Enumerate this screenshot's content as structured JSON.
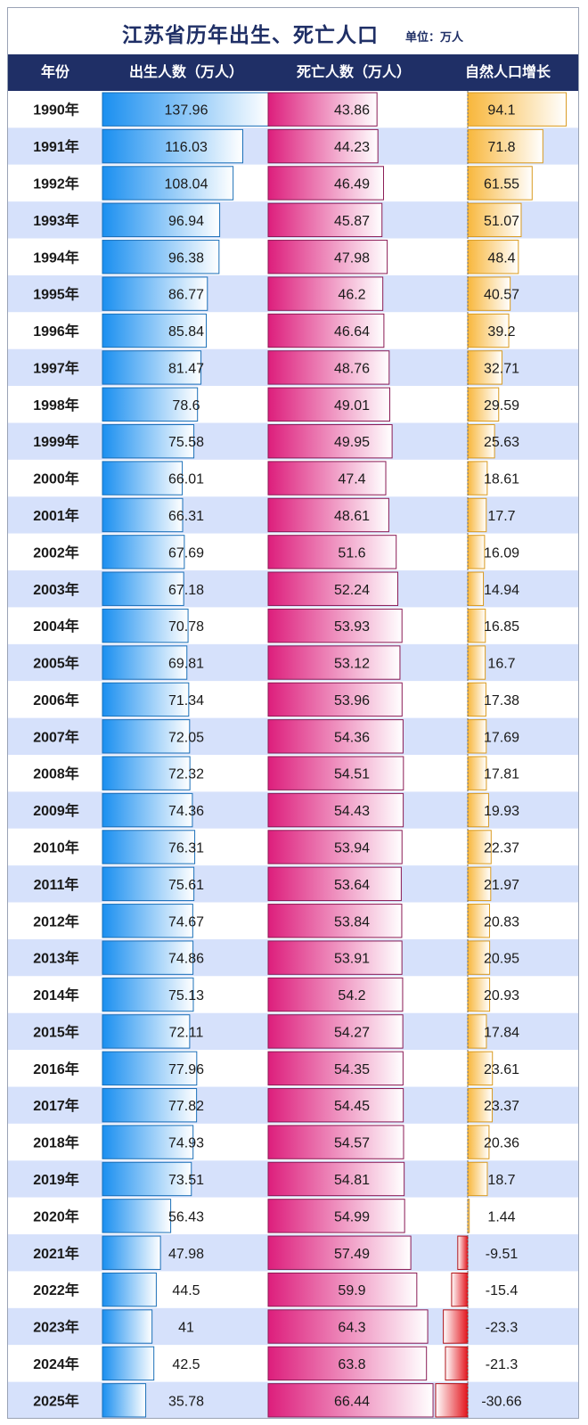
{
  "title": "江苏省历年出生、死亡人口",
  "unit_note": "单位：万人",
  "header": {
    "year": "年份",
    "births": "出生人数（万人）",
    "deaths": "死亡人数（万人）",
    "natural": "自然人口增长"
  },
  "colors": {
    "header_bg": "#1f2f66",
    "row_alt": "#d6e1fb",
    "births": "#1a8ff0",
    "deaths": "#dd1e7c",
    "natural_pos": "#f8b73c",
    "natural_neg": "#e3141c"
  },
  "chart_data": {
    "type": "table",
    "title": "江苏省历年出生、死亡人口",
    "columns": [
      "年份",
      "出生人数（万人）",
      "死亡人数（万人）",
      "自然人口增长"
    ],
    "years": [
      "1990年",
      "1991年",
      "1992年",
      "1993年",
      "1994年",
      "1995年",
      "1996年",
      "1997年",
      "1998年",
      "1999年",
      "2000年",
      "2001年",
      "2002年",
      "2003年",
      "2004年",
      "2005年",
      "2006年",
      "2007年",
      "2008年",
      "2009年",
      "2010年",
      "2011年",
      "2012年",
      "2013年",
      "2014年",
      "2015年",
      "2016年",
      "2017年",
      "2018年",
      "2019年",
      "2020年",
      "2021年",
      "2022年",
      "2023年",
      "2024年",
      "2025年"
    ],
    "births": [
      137.96,
      116.03,
      108.04,
      96.94,
      96.38,
      86.77,
      85.84,
      81.47,
      78.6,
      75.58,
      66.01,
      66.31,
      67.69,
      67.18,
      70.78,
      69.81,
      71.34,
      72.05,
      72.32,
      74.36,
      76.31,
      75.61,
      74.67,
      74.86,
      75.13,
      72.11,
      77.96,
      77.82,
      74.93,
      73.51,
      56.43,
      47.98,
      44.5,
      41,
      42.5,
      35.78
    ],
    "deaths": [
      43.86,
      44.23,
      46.49,
      45.87,
      47.98,
      46.2,
      46.64,
      48.76,
      49.01,
      49.95,
      47.4,
      48.61,
      51.6,
      52.24,
      53.93,
      53.12,
      53.96,
      54.36,
      54.51,
      54.43,
      53.94,
      53.64,
      53.84,
      53.91,
      54.2,
      54.27,
      54.35,
      54.45,
      54.57,
      54.81,
      54.99,
      57.49,
      59.9,
      64.3,
      63.8,
      66.44
    ],
    "natural": [
      94.1,
      71.8,
      61.55,
      51.07,
      48.4,
      40.57,
      39.2,
      32.71,
      29.59,
      25.63,
      18.61,
      17.7,
      16.09,
      14.94,
      16.85,
      16.7,
      17.38,
      17.69,
      17.81,
      19.93,
      22.37,
      21.97,
      20.83,
      20.95,
      20.93,
      17.84,
      23.61,
      23.37,
      20.36,
      18.7,
      1.44,
      -9.51,
      -15.4,
      -23.3,
      -21.3,
      -30.66
    ]
  }
}
